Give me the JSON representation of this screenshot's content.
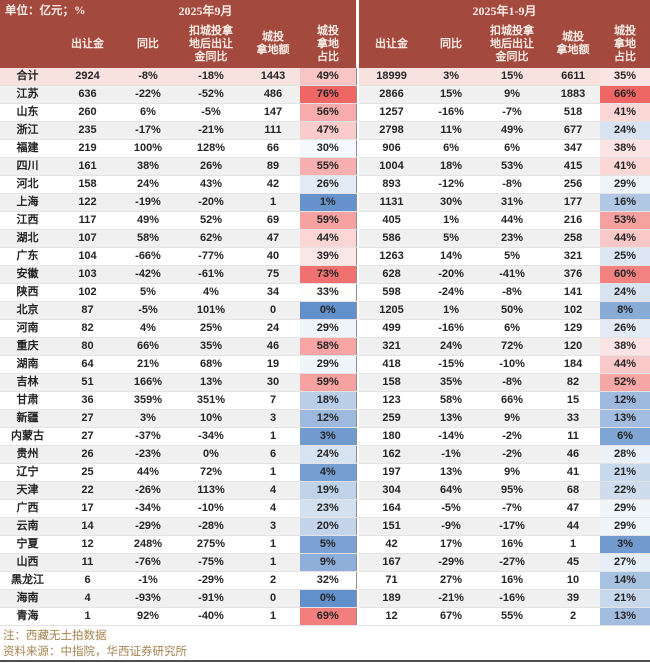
{
  "meta": {
    "unit_label": "单位：亿元；%",
    "period_left": "2025年9月",
    "period_right": "2025年1-9月"
  },
  "columns": {
    "sale": "出让金",
    "yoy": "同比",
    "ex": "扣城投拿\n地后出让\n金同比",
    "amt": "城投\n拿地额",
    "share": "城投\n拿地\n占比"
  },
  "notes": [
    "注：西藏无土拍数据",
    "资料来源：中指院，华西证券研究所"
  ],
  "colors": {
    "header_bg": "#A4493E",
    "header_text": "#F7ECE5",
    "total_row_bg": "#F8E2E0",
    "stripe_bg": "#F1F0F0",
    "heat_red": "#EF6765",
    "heat_blue": "#6290CA",
    "note_text": "#A5834F"
  },
  "chart_data": {
    "type": "table",
    "unit": "亿元；%",
    "groups": [
      "2025年9月",
      "2025年1-9月"
    ],
    "columns_per_group": [
      "出让金",
      "同比",
      "扣城投拿地后出让金同比",
      "城投拿地额",
      "城投拿地占比"
    ],
    "percent_value_indexes": [
      1,
      2,
      4,
      6,
      7,
      9
    ],
    "heat_share_indexes": [
      4,
      9
    ],
    "heat_midpoint_pct": 32,
    "rows": [
      {
        "name": "合计",
        "total": true,
        "values": [
          2924,
          -8,
          -18,
          1443,
          49,
          18999,
          3,
          15,
          6611,
          35
        ]
      },
      {
        "name": "江苏",
        "values": [
          636,
          -22,
          -52,
          486,
          76,
          2866,
          15,
          9,
          1883,
          66
        ]
      },
      {
        "name": "山东",
        "values": [
          260,
          6,
          -5,
          147,
          56,
          1257,
          -16,
          -7,
          518,
          41
        ]
      },
      {
        "name": "浙江",
        "values": [
          235,
          -17,
          -21,
          111,
          47,
          2798,
          11,
          49,
          677,
          24
        ]
      },
      {
        "name": "福建",
        "values": [
          219,
          100,
          128,
          66,
          30,
          906,
          6,
          6,
          347,
          38
        ]
      },
      {
        "name": "四川",
        "values": [
          161,
          38,
          26,
          89,
          55,
          1004,
          18,
          53,
          415,
          41
        ]
      },
      {
        "name": "河北",
        "values": [
          158,
          24,
          43,
          42,
          26,
          893,
          -12,
          -8,
          256,
          29
        ]
      },
      {
        "name": "上海",
        "values": [
          122,
          -19,
          -20,
          1,
          1,
          1131,
          30,
          31,
          177,
          16
        ]
      },
      {
        "name": "江西",
        "values": [
          117,
          49,
          52,
          69,
          59,
          405,
          1,
          44,
          216,
          53
        ]
      },
      {
        "name": "湖北",
        "values": [
          107,
          58,
          62,
          47,
          44,
          586,
          5,
          23,
          258,
          44
        ]
      },
      {
        "name": "广东",
        "values": [
          104,
          -66,
          -77,
          40,
          39,
          1263,
          14,
          5,
          321,
          25
        ]
      },
      {
        "name": "安徽",
        "values": [
          103,
          -42,
          -61,
          75,
          73,
          628,
          -20,
          -41,
          376,
          60
        ]
      },
      {
        "name": "陕西",
        "values": [
          102,
          5,
          4,
          34,
          33,
          598,
          -24,
          -8,
          141,
          24
        ]
      },
      {
        "name": "北京",
        "values": [
          87,
          -5,
          101,
          0,
          0,
          1205,
          1,
          50,
          102,
          8
        ]
      },
      {
        "name": "河南",
        "values": [
          82,
          4,
          25,
          24,
          29,
          499,
          -16,
          6,
          129,
          26
        ]
      },
      {
        "name": "重庆",
        "values": [
          80,
          66,
          35,
          46,
          58,
          321,
          24,
          72,
          120,
          38
        ]
      },
      {
        "name": "湖南",
        "values": [
          64,
          21,
          68,
          19,
          29,
          418,
          -15,
          -10,
          184,
          44
        ]
      },
      {
        "name": "吉林",
        "values": [
          51,
          166,
          13,
          30,
          59,
          158,
          35,
          -8,
          82,
          52
        ]
      },
      {
        "name": "甘肃",
        "values": [
          36,
          359,
          351,
          7,
          18,
          123,
          58,
          66,
          15,
          12
        ]
      },
      {
        "name": "新疆",
        "values": [
          27,
          3,
          10,
          3,
          12,
          259,
          13,
          9,
          33,
          13
        ]
      },
      {
        "name": "内蒙古",
        "values": [
          27,
          -37,
          -34,
          1,
          3,
          180,
          -14,
          -2,
          11,
          6
        ]
      },
      {
        "name": "贵州",
        "values": [
          26,
          -23,
          0,
          6,
          24,
          162,
          -1,
          -2,
          46,
          28
        ]
      },
      {
        "name": "辽宁",
        "values": [
          25,
          44,
          72,
          1,
          4,
          197,
          13,
          9,
          41,
          21
        ]
      },
      {
        "name": "天津",
        "values": [
          22,
          -26,
          113,
          4,
          19,
          304,
          64,
          95,
          68,
          22
        ]
      },
      {
        "name": "广西",
        "values": [
          17,
          -34,
          -10,
          4,
          23,
          164,
          -5,
          -7,
          47,
          29
        ]
      },
      {
        "name": "云南",
        "values": [
          14,
          -29,
          -28,
          3,
          20,
          151,
          -9,
          -17,
          44,
          29
        ]
      },
      {
        "name": "宁夏",
        "values": [
          12,
          248,
          275,
          1,
          5,
          42,
          17,
          16,
          1,
          3
        ]
      },
      {
        "name": "山西",
        "values": [
          11,
          -76,
          -75,
          1,
          9,
          167,
          -29,
          -27,
          45,
          27
        ]
      },
      {
        "name": "黑龙江",
        "values": [
          6,
          -1,
          -29,
          2,
          32,
          71,
          27,
          16,
          10,
          14
        ]
      },
      {
        "name": "海南",
        "values": [
          4,
          -93,
          -91,
          0,
          0,
          189,
          -21,
          -16,
          39,
          21
        ]
      },
      {
        "name": "青海",
        "values": [
          1,
          92,
          -40,
          1,
          69,
          12,
          67,
          55,
          2,
          13
        ]
      }
    ]
  }
}
